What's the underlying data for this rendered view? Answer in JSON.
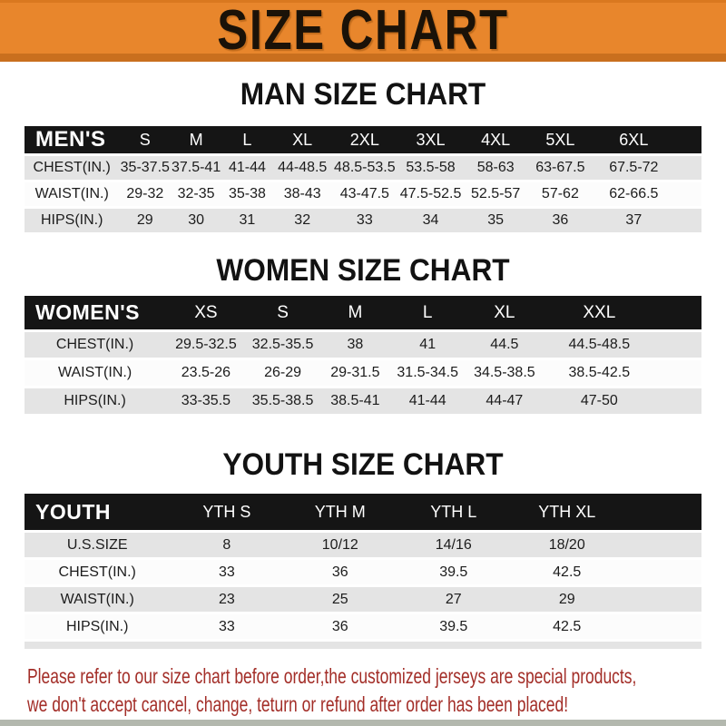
{
  "banner": {
    "title": "SIZE CHART"
  },
  "chart_data": [
    {
      "type": "table",
      "title": "MAN SIZE CHART",
      "label": "MEN'S",
      "columns": [
        "S",
        "M",
        "L",
        "XL",
        "2XL",
        "3XL",
        "4XL",
        "5XL",
        "6XL"
      ],
      "rows": [
        {
          "label": "CHEST(IN.)",
          "values": [
            "35-37.5",
            "37.5-41",
            "41-44",
            "44-48.5",
            "48.5-53.5",
            "53.5-58",
            "58-63",
            "63-67.5",
            "67.5-72"
          ]
        },
        {
          "label": "WAIST(IN.)",
          "values": [
            "29-32",
            "32-35",
            "35-38",
            "38-43",
            "43-47.5",
            "47.5-52.5",
            "52.5-57",
            "57-62",
            "62-66.5"
          ]
        },
        {
          "label": "HIPS(IN.)",
          "values": [
            "29",
            "30",
            "31",
            "32",
            "33",
            "34",
            "35",
            "36",
            "37"
          ]
        }
      ]
    },
    {
      "type": "table",
      "title": "WOMEN SIZE CHART",
      "label": "WOMEN'S",
      "columns": [
        "XS",
        "S",
        "M",
        "L",
        "XL",
        "XXL"
      ],
      "rows": [
        {
          "label": "CHEST(IN.)",
          "values": [
            "29.5-32.5",
            "32.5-35.5",
            "38",
            "41",
            "44.5",
            "44.5-48.5"
          ]
        },
        {
          "label": "WAIST(IN.)",
          "values": [
            "23.5-26",
            "26-29",
            "29-31.5",
            "31.5-34.5",
            "34.5-38.5",
            "38.5-42.5"
          ]
        },
        {
          "label": "HIPS(IN.)",
          "values": [
            "33-35.5",
            "35.5-38.5",
            "38.5-41",
            "41-44",
            "44-47",
            "47-50"
          ]
        }
      ]
    },
    {
      "type": "table",
      "title": "YOUTH SIZE CHART",
      "label": "YOUTH",
      "columns": [
        "YTH S",
        "YTH M",
        "YTH L",
        "YTH XL"
      ],
      "rows": [
        {
          "label": "U.S.SIZE",
          "values": [
            "8",
            "10/12",
            "14/16",
            "18/20"
          ]
        },
        {
          "label": "CHEST(IN.)",
          "values": [
            "33",
            "36",
            "39.5",
            "42.5"
          ]
        },
        {
          "label": "WAIST(IN.)",
          "values": [
            "23",
            "25",
            "27",
            "29"
          ]
        },
        {
          "label": "HIPS(IN.)",
          "values": [
            "33",
            "36",
            "39.5",
            "42.5"
          ]
        }
      ]
    }
  ],
  "note": {
    "line1": "Please refer to our size chart before order,the customized jerseys are special products,",
    "line2": "we don't accept cancel, change, teturn or refund after order has been placed!"
  },
  "colors": {
    "banner_orange": "#E8862C",
    "banner_edge_dark": "#C96F1E",
    "header_bar_black": "#151515",
    "row_gray": "#E4E4E4",
    "row_white": "#FCFCFC",
    "note_red": "#A32E28"
  }
}
